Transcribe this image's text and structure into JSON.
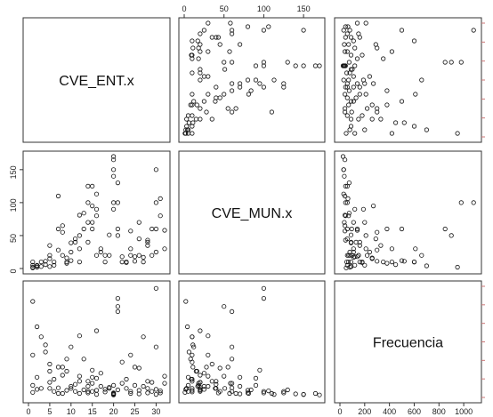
{
  "chart_data": {
    "type": "scatter",
    "variables": [
      "CVE_ENT.x",
      "CVE_MUN.x",
      "Frecuencia"
    ],
    "axes": {
      "CVE_ENT.x": {
        "range": [
          0,
          32
        ],
        "ticks": [
          0,
          5,
          10,
          15,
          20,
          25,
          30
        ]
      },
      "CVE_MUN.x": {
        "range": [
          0,
          170
        ],
        "ticks": [
          0,
          50,
          100,
          150
        ]
      },
      "Frecuencia": {
        "range": [
          0,
          1100
        ],
        "ticks": [
          0,
          200,
          400,
          600,
          800,
          1000
        ]
      }
    },
    "tick_labels": {
      "top_x": [
        "0",
        "50",
        "100",
        "150"
      ],
      "left_y": [
        "0",
        "50",
        "100",
        "150"
      ],
      "bottom_x_col1": [
        "0",
        "5",
        "10",
        "15",
        "20",
        "25",
        "30"
      ],
      "bottom_x_col3": [
        "0",
        "200",
        "400",
        "600",
        "800",
        "1000"
      ]
    },
    "x_CVE_ENT": [
      1,
      1,
      1,
      2,
      2,
      2,
      3,
      3,
      4,
      4,
      5,
      5,
      5,
      6,
      6,
      7,
      7,
      8,
      8,
      8,
      9,
      9,
      10,
      10,
      10,
      11,
      11,
      12,
      12,
      12,
      13,
      13,
      14,
      14,
      14,
      15,
      15,
      15,
      16,
      16,
      16,
      17,
      17,
      18,
      18,
      19,
      19,
      20,
      20,
      20,
      20,
      21,
      21,
      21,
      22,
      22,
      23,
      23,
      24,
      24,
      25,
      25,
      26,
      26,
      27,
      27,
      28,
      28,
      29,
      29,
      30,
      30,
      30,
      31,
      31,
      32,
      32,
      1,
      5,
      9,
      14,
      20,
      26,
      30,
      12,
      15,
      20,
      21,
      7,
      16,
      24,
      28
    ],
    "y_CVE_MUN": [
      1,
      5,
      10,
      2,
      4,
      5,
      3,
      10,
      6,
      11,
      20,
      35,
      3,
      5,
      10,
      60,
      110,
      20,
      55,
      65,
      10,
      16,
      25,
      39,
      12,
      40,
      45,
      50,
      81,
      10,
      60,
      84,
      70,
      100,
      125,
      60,
      95,
      125,
      80,
      113,
      20,
      25,
      30,
      10,
      20,
      20,
      51,
      100,
      150,
      170,
      165,
      130,
      100,
      50,
      10,
      18,
      10,
      9,
      20,
      57,
      18,
      11,
      20,
      70,
      10,
      17,
      40,
      43,
      60,
      20,
      100,
      150,
      25,
      80,
      106,
      58,
      30,
      2,
      15,
      8,
      40,
      90,
      45,
      60,
      30,
      70,
      140,
      60,
      28,
      90,
      30,
      35
    ],
    "z_Frecuencia": [
      50,
      120,
      420,
      80,
      700,
      200,
      90,
      600,
      450,
      520,
      150,
      330,
      90,
      60,
      180,
      95,
      40,
      220,
      300,
      40,
      70,
      260,
      110,
      90,
      500,
      130,
      60,
      210,
      40,
      160,
      380,
      75,
      110,
      60,
      45,
      140,
      270,
      60,
      70,
      30,
      660,
      240,
      110,
      55,
      80,
      100,
      90,
      45,
      30,
      25,
      40,
      75,
      980,
      900,
      350,
      140,
      90,
      180,
      60,
      40,
      120,
      300,
      70,
      35,
      600,
      110,
      90,
      45,
      60,
      150,
      1080,
      30,
      80,
      45,
      65,
      140,
      210,
      950,
      260,
      380,
      160,
      120,
      290,
      500,
      610,
      200,
      35,
      850,
      300,
      190,
      420,
      160
    ]
  }
}
